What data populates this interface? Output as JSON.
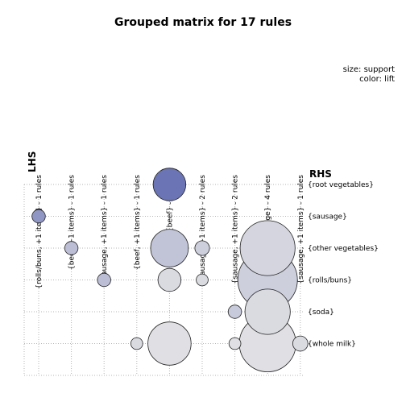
{
  "chart_data": {
    "type": "scatter",
    "title": "Grouped matrix for 17 rules",
    "legend": {
      "size_label": "size: support",
      "color_label": "color: lift",
      "position": "top-right"
    },
    "lhs_label": "LHS",
    "rhs_label": "RHS",
    "lhs_groups": [
      "{rolls/buns, +1 items} - 1 rules",
      "{beef, +1 items} - 1 rules",
      "{sausage, +1 items} - 1 rules",
      "{beef, +1 items} - 1 rules",
      "{beef} - 4 rules",
      "{sausage, +1 items} - 2 rules",
      "{sausage, +1 items} - 2 rules",
      "{sausage} - 4 rules",
      "{sausage, +1 items} - 1 rules"
    ],
    "rhs_items": [
      "{root vegetables}",
      "{sausage}",
      "{other vegetables}",
      "{rolls/buns}",
      "{soda}",
      "{whole milk}"
    ],
    "grid": true,
    "colors": {
      "low": "#e6e6e6",
      "high": "#6b74b4"
    },
    "points": [
      {
        "lhs": 4,
        "rhs": 0,
        "support": 0.6,
        "lift": 1.0
      },
      {
        "lhs": 0,
        "rhs": 1,
        "support": 0.1,
        "lift": 0.7
      },
      {
        "lhs": 1,
        "rhs": 2,
        "support": 0.1,
        "lift": 0.35
      },
      {
        "lhs": 4,
        "rhs": 2,
        "support": 0.8,
        "lift": 0.3
      },
      {
        "lhs": 5,
        "rhs": 2,
        "support": 0.12,
        "lift": 0.2
      },
      {
        "lhs": 7,
        "rhs": 2,
        "support": 1.7,
        "lift": 0.15
      },
      {
        "lhs": 2,
        "rhs": 3,
        "support": 0.1,
        "lift": 0.35
      },
      {
        "lhs": 4,
        "rhs": 3,
        "support": 0.3,
        "lift": 0.1
      },
      {
        "lhs": 5,
        "rhs": 3,
        "support": 0.08,
        "lift": 0.1
      },
      {
        "lhs": 7,
        "rhs": 3,
        "support": 2.0,
        "lift": 0.2
      },
      {
        "lhs": 6,
        "rhs": 4,
        "support": 0.1,
        "lift": 0.25
      },
      {
        "lhs": 7,
        "rhs": 4,
        "support": 1.15,
        "lift": 0.1
      },
      {
        "lhs": 3,
        "rhs": 5,
        "support": 0.08,
        "lift": 0.1
      },
      {
        "lhs": 4,
        "rhs": 5,
        "support": 1.05,
        "lift": 0.05
      },
      {
        "lhs": 6,
        "rhs": 5,
        "support": 0.08,
        "lift": 0.05
      },
      {
        "lhs": 7,
        "rhs": 5,
        "support": 1.8,
        "lift": 0.05
      },
      {
        "lhs": 8,
        "rhs": 5,
        "support": 0.13,
        "lift": 0.1
      }
    ]
  }
}
